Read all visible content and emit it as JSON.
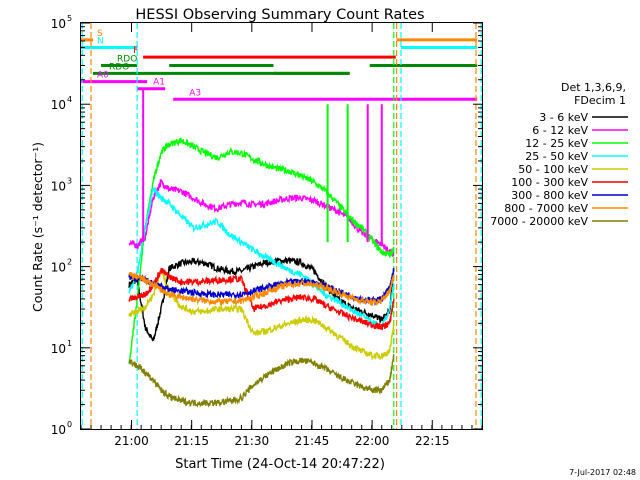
{
  "chart_data": {
    "type": "line",
    "title": "HESSI Observing Summary Count Rates",
    "xlabel": "Start Time (24-Oct-14 20:47:22)",
    "ylabel": "Count Rate (s⁻¹ detector⁻¹)",
    "yscale": "log",
    "ylim": [
      1,
      100000
    ],
    "xlim_minutes": [
      0,
      100
    ],
    "x_ticks": [
      {
        "label": "21:00",
        "min": 12.6
      },
      {
        "label": "21:15",
        "min": 27.6
      },
      {
        "label": "21:30",
        "min": 42.6
      },
      {
        "label": "21:45",
        "min": 57.6
      },
      {
        "label": "22:00",
        "min": 72.6
      },
      {
        "label": "22:15",
        "min": 87.6
      }
    ],
    "y_ticks": [
      {
        "base": "10",
        "exp": "0",
        "value": 1
      },
      {
        "base": "10",
        "exp": "1",
        "value": 10
      },
      {
        "base": "10",
        "exp": "2",
        "value": 100
      },
      {
        "base": "10",
        "exp": "3",
        "value": 1000
      },
      {
        "base": "10",
        "exp": "4",
        "value": 10000
      },
      {
        "base": "10",
        "exp": "5",
        "value": 100000
      }
    ],
    "legend": {
      "placement": "right",
      "header": [
        "Det 1,3,6,9,",
        "FDecim 1"
      ]
    },
    "series": [
      {
        "name": "3 - 6 keV",
        "color": "#000000",
        "x": [
          12,
          14,
          16,
          18,
          20,
          22,
          25,
          28,
          31,
          34,
          37,
          40,
          43,
          46,
          49,
          52,
          55,
          58,
          61,
          64,
          67,
          70,
          73,
          75,
          77,
          78
        ],
        "y": [
          60,
          70,
          18,
          12,
          30,
          95,
          110,
          115,
          110,
          95,
          88,
          88,
          100,
          112,
          118,
          118,
          112,
          90,
          58,
          40,
          32,
          28,
          25,
          22,
          28,
          95
        ]
      },
      {
        "name": "6 - 12 keV",
        "color": "#ff00ff",
        "x": [
          12,
          14,
          16,
          18,
          20,
          22,
          25,
          28,
          31,
          34,
          37,
          40,
          43,
          46,
          49,
          52,
          55,
          58,
          61,
          64,
          67,
          70,
          73,
          75,
          77,
          78
        ],
        "y": [
          200,
          180,
          230,
          700,
          1100,
          900,
          850,
          700,
          580,
          520,
          580,
          620,
          580,
          600,
          650,
          700,
          700,
          650,
          560,
          480,
          380,
          260,
          210,
          190,
          150,
          140
        ]
      },
      {
        "name": "12 - 25 keV",
        "color": "#00ff00",
        "x": [
          12,
          14,
          16,
          18,
          20,
          22,
          25,
          28,
          31,
          34,
          37,
          40,
          43,
          46,
          49,
          52,
          55,
          58,
          61,
          64,
          67,
          70,
          73,
          75,
          77,
          78
        ],
        "y": [
          6,
          40,
          300,
          1100,
          2600,
          3200,
          3600,
          3000,
          2500,
          2200,
          2600,
          2500,
          2100,
          1800,
          1600,
          1500,
          1300,
          1100,
          850,
          600,
          400,
          300,
          200,
          150,
          140,
          160
        ]
      },
      {
        "name": "25 - 50 keV",
        "color": "#00ffff",
        "x": [
          12,
          14,
          16,
          18,
          20,
          22,
          25,
          28,
          31,
          34,
          37,
          40,
          43,
          46,
          49,
          52,
          55,
          58,
          61,
          64,
          67,
          70,
          73,
          75,
          77,
          78
        ],
        "y": [
          50,
          80,
          300,
          900,
          700,
          600,
          420,
          300,
          330,
          360,
          250,
          200,
          160,
          130,
          110,
          90,
          80,
          60,
          45,
          38,
          30,
          25,
          20,
          18,
          30,
          60
        ]
      },
      {
        "name": "50 - 100 keV",
        "color": "#cccc00",
        "x": [
          12,
          14,
          16,
          18,
          20,
          22,
          25,
          28,
          31,
          34,
          37,
          40,
          43,
          46,
          49,
          52,
          55,
          58,
          61,
          64,
          67,
          70,
          73,
          75,
          77,
          78
        ],
        "y": [
          25,
          28,
          32,
          45,
          90,
          50,
          32,
          28,
          28,
          30,
          30,
          30,
          15,
          16,
          18,
          20,
          22,
          22,
          18,
          14,
          11,
          9,
          8,
          8,
          9,
          20
        ]
      },
      {
        "name": "100 - 300 keV",
        "color": "#ff0000",
        "x": [
          12,
          14,
          16,
          18,
          20,
          22,
          25,
          28,
          31,
          34,
          37,
          40,
          43,
          46,
          49,
          52,
          55,
          58,
          61,
          64,
          67,
          70,
          73,
          75,
          77,
          78
        ],
        "y": [
          40,
          42,
          45,
          60,
          90,
          75,
          65,
          65,
          66,
          68,
          70,
          70,
          30,
          33,
          37,
          40,
          42,
          40,
          33,
          28,
          24,
          21,
          19,
          18,
          20,
          40
        ]
      },
      {
        "name": "300 - 800 keV",
        "color": "#0000cc",
        "x": [
          12,
          14,
          16,
          18,
          20,
          22,
          25,
          28,
          31,
          34,
          37,
          40,
          43,
          46,
          49,
          52,
          55,
          58,
          61,
          64,
          67,
          70,
          73,
          75,
          77,
          78
        ],
        "y": [
          75,
          72,
          68,
          62,
          58,
          52,
          50,
          48,
          46,
          45,
          45,
          46,
          50,
          55,
          60,
          64,
          66,
          64,
          58,
          50,
          44,
          40,
          38,
          40,
          55,
          90
        ]
      },
      {
        "name": "800 - 7000 keV",
        "color": "#ff8800",
        "x": [
          12,
          14,
          16,
          18,
          20,
          22,
          25,
          28,
          31,
          34,
          37,
          40,
          43,
          46,
          49,
          52,
          55,
          58,
          61,
          64,
          67,
          70,
          73,
          75,
          77,
          78
        ],
        "y": [
          80,
          75,
          68,
          60,
          52,
          45,
          42,
          40,
          38,
          37,
          37,
          38,
          42,
          48,
          55,
          60,
          62,
          60,
          55,
          48,
          42,
          38,
          36,
          38,
          50,
          80
        ]
      },
      {
        "name": "7000 - 20000 keV",
        "color": "#808000",
        "x": [
          12,
          14,
          16,
          18,
          20,
          22,
          25,
          28,
          31,
          34,
          37,
          40,
          43,
          46,
          49,
          52,
          55,
          58,
          61,
          64,
          67,
          70,
          73,
          75,
          77,
          78
        ],
        "y": [
          7,
          6,
          5,
          4,
          3,
          2.5,
          2.2,
          2.1,
          2.1,
          2.1,
          2.2,
          2.4,
          3.5,
          4.5,
          5.5,
          6.5,
          7,
          6.5,
          5.5,
          4.5,
          3.8,
          3.3,
          3.0,
          3.0,
          4,
          8
        ]
      }
    ],
    "spikes": [
      {
        "x": 15.5,
        "y": 15000,
        "color": "#ff00ff"
      },
      {
        "x": 61.5,
        "y": 10000,
        "color": "#00ff00"
      },
      {
        "x": 66.5,
        "y": 10000,
        "color": "#00ff00"
      },
      {
        "x": 71.5,
        "y": 10000,
        "color": "#ff00ff"
      },
      {
        "x": 75,
        "y": 10000,
        "color": "#ff00ff"
      }
    ],
    "vlines": [
      {
        "x": 0.3,
        "color": "#00ffff"
      },
      {
        "x": 2.5,
        "color": "#ff8800"
      },
      {
        "x": 14,
        "color": "#00ffff"
      },
      {
        "x": 78,
        "color": "#00ff00"
      },
      {
        "x": 78.7,
        "color": "#ff8800"
      },
      {
        "x": 79.8,
        "color": "#00ffff"
      },
      {
        "x": 98.5,
        "color": "#ff8800"
      },
      {
        "x": 99.8,
        "color": "#00ffff"
      }
    ],
    "flag_bars": [
      {
        "label": "S",
        "color": "#ff8800",
        "y": 62000,
        "segments": [
          [
            0,
            3
          ],
          [
            78.7,
            98.8
          ]
        ]
      },
      {
        "label": "N",
        "color": "#00ffff",
        "y": 50000,
        "segments": [
          [
            0,
            14
          ],
          [
            79.8,
            98.8
          ]
        ]
      },
      {
        "label": "F",
        "color": "#ff0000",
        "y": 38000,
        "segments": [
          [
            15.5,
            78.5
          ]
        ]
      },
      {
        "label": "RDO",
        "color": "#008800",
        "y": 30000,
        "segments": [
          [
            5,
            14
          ],
          [
            22,
            48
          ],
          [
            72,
            98.8
          ]
        ]
      },
      {
        "label": "RDO",
        "color": "#008800",
        "y": 24000,
        "segments": [
          [
            3,
            67
          ],
          [
            48,
            67
          ]
        ]
      },
      {
        "label": "A0",
        "color": "#ff00ff",
        "y": 19000,
        "segments": [
          [
            0,
            16.5
          ]
        ]
      },
      {
        "label": "A1",
        "color": "#ff00ff",
        "y": 15500,
        "segments": [
          [
            14,
            21
          ]
        ]
      },
      {
        "label": "A3",
        "color": "#ff00ff",
        "y": 11500,
        "segments": [
          [
            23,
            98.8
          ]
        ]
      }
    ]
  },
  "footer": {
    "date_stamp": "7-Jul-2017 02:48"
  }
}
